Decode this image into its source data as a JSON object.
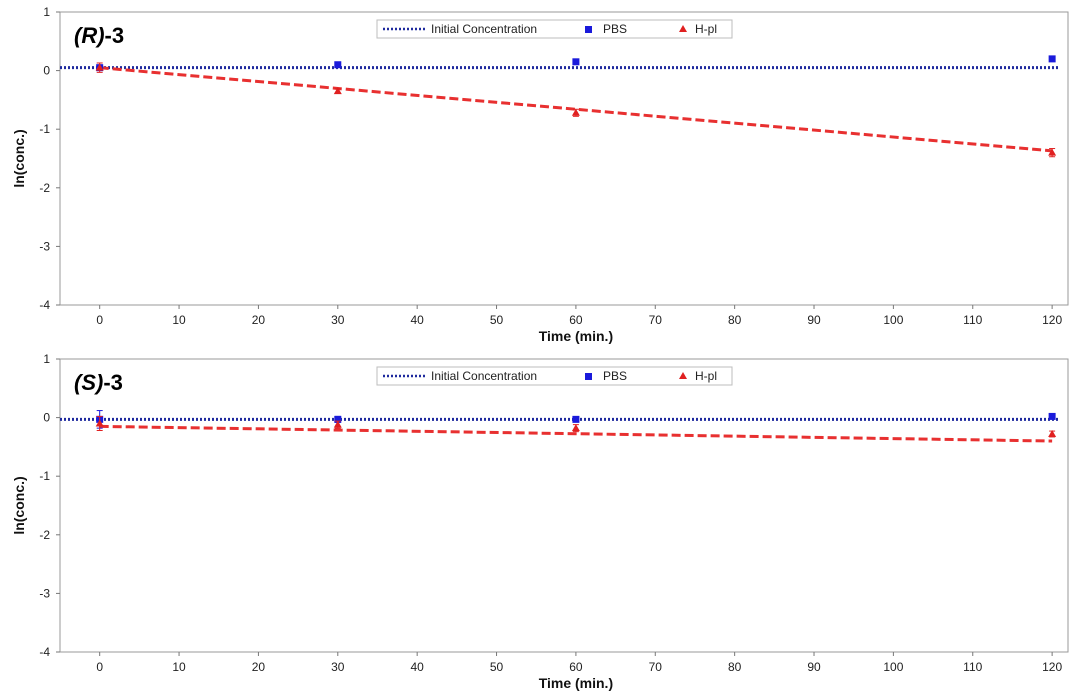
{
  "chart_data": [
    {
      "type": "line",
      "title_italic": "(R)",
      "title_rest": "-3",
      "xlabel": "Time (min.)",
      "ylabel": "ln(conc.)",
      "xlim": [
        -5,
        122
      ],
      "ylim": [
        -4,
        1
      ],
      "xticks": [
        0,
        10,
        20,
        30,
        40,
        50,
        60,
        70,
        80,
        90,
        100,
        110,
        120
      ],
      "yticks": [
        1,
        0,
        -1,
        -2,
        -3,
        -4
      ],
      "legend_position": "top-center",
      "legend": {
        "initial": "Initial Concentration",
        "pbs": "PBS",
        "hpl": "H-pl"
      },
      "initial_concentration": 0.05,
      "series": [
        {
          "key": "pbs",
          "color": "#1a1adb",
          "marker": "square",
          "x": [
            0,
            30,
            60,
            120
          ],
          "y": [
            0.05,
            0.1,
            0.15,
            0.2
          ],
          "err": [
            0.03,
            0.03,
            0.03,
            0.03
          ]
        },
        {
          "key": "hpl",
          "color": "#e02020",
          "marker": "triangle",
          "x": [
            0,
            30,
            60,
            120
          ],
          "y": [
            0.05,
            -0.35,
            -0.72,
            -1.4
          ],
          "err": [
            0.08,
            0.04,
            0.06,
            0.07
          ]
        }
      ],
      "trendline": {
        "color": "#e83030",
        "x": [
          0,
          120
        ],
        "y": [
          0.05,
          -1.37
        ]
      }
    },
    {
      "type": "line",
      "title_italic": "(S)",
      "title_rest": "-3",
      "xlabel": "Time (min.)",
      "ylabel": "ln(conc.)",
      "xlim": [
        -5,
        122
      ],
      "ylim": [
        -4,
        1
      ],
      "xticks": [
        0,
        10,
        20,
        30,
        40,
        50,
        60,
        70,
        80,
        90,
        100,
        110,
        120
      ],
      "yticks": [
        1,
        0,
        -1,
        -2,
        -3,
        -4
      ],
      "legend_position": "top-center",
      "legend": {
        "initial": "Initial Concentration",
        "pbs": "PBS",
        "hpl": "H-pl"
      },
      "initial_concentration": -0.03,
      "series": [
        {
          "key": "pbs",
          "color": "#1a1adb",
          "marker": "square",
          "x": [
            0,
            30,
            60,
            120
          ],
          "y": [
            -0.03,
            -0.03,
            -0.03,
            0.02
          ],
          "err": [
            0.15,
            0.05,
            0.04,
            0.03
          ]
        },
        {
          "key": "hpl",
          "color": "#e02020",
          "marker": "triangle",
          "x": [
            0,
            30,
            60,
            120
          ],
          "y": [
            -0.1,
            -0.12,
            -0.18,
            -0.28
          ],
          "err": [
            0.12,
            0.06,
            0.06,
            0.05
          ]
        }
      ],
      "trendline": {
        "color": "#e83030",
        "x": [
          0,
          120
        ],
        "y": [
          -0.15,
          -0.4
        ]
      }
    }
  ]
}
